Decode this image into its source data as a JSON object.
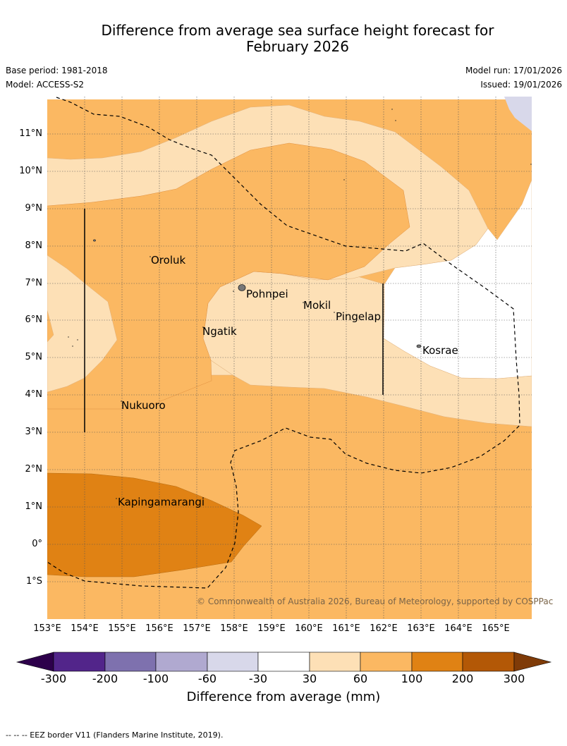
{
  "title": {
    "line1": "Difference from average sea surface height forecast for",
    "line2": "February 2026"
  },
  "meta": {
    "base_period": "Base period: 1981-2018",
    "model": "Model: ACCESS-S2",
    "model_run": "Model run: 17/01/2026",
    "issued": "Issued: 19/01/2026"
  },
  "map": {
    "lon_range": [
      153,
      165.96
    ],
    "lat_range": [
      -2,
      12
    ],
    "lat_labels": [
      "11°N",
      "10°N",
      "9°N",
      "8°N",
      "7°N",
      "6°N",
      "5°N",
      "4°N",
      "3°N",
      "2°N",
      "1°N",
      "0°",
      "1°S"
    ],
    "lon_labels": [
      "153°E",
      "154°E",
      "155°E",
      "156°E",
      "157°E",
      "158°E",
      "159°E",
      "160°E",
      "161°E",
      "162°E",
      "163°E",
      "164°E",
      "165°E"
    ],
    "places": [
      {
        "name": "Oroluk",
        "lon": 155.8,
        "lat": 7.6
      },
      {
        "name": "Pohnpei",
        "lon": 158.3,
        "lat": 6.9
      },
      {
        "name": "Mokil",
        "lon": 159.8,
        "lat": 6.7
      },
      {
        "name": "Pingelap",
        "lon": 160.7,
        "lat": 6.2
      },
      {
        "name": "Ngatik",
        "lon": 157.3,
        "lat": 5.8
      },
      {
        "name": "Kosrae",
        "lon": 163.0,
        "lat": 5.3
      },
      {
        "name": "Nukuoro",
        "lon": 154.8,
        "lat": 3.9
      },
      {
        "name": "Kapingamarangi",
        "lon": 154.8,
        "lat": 1.2
      }
    ],
    "copyright": "© Commonwealth of Australia 2026, Bureau of Meteorology, supported by COSPPac"
  },
  "colorbar": {
    "title": "Difference from average (mm)",
    "ticks": [
      "-300",
      "-200",
      "-100",
      "-60",
      "-30",
      "30",
      "60",
      "100",
      "200",
      "300"
    ],
    "colors": [
      "#52258a",
      "#7e71ae",
      "#b0a9d0",
      "#d8d8ea",
      "#ffffff",
      "#fde0b6",
      "#fbb862",
      "#e08214",
      "#b35806"
    ],
    "extend_low": "#2d004b",
    "extend_high": "#7f3b08"
  },
  "footnote": "--  --  -- EEZ border V11 (Flanders Marine Institute, 2019)."
}
